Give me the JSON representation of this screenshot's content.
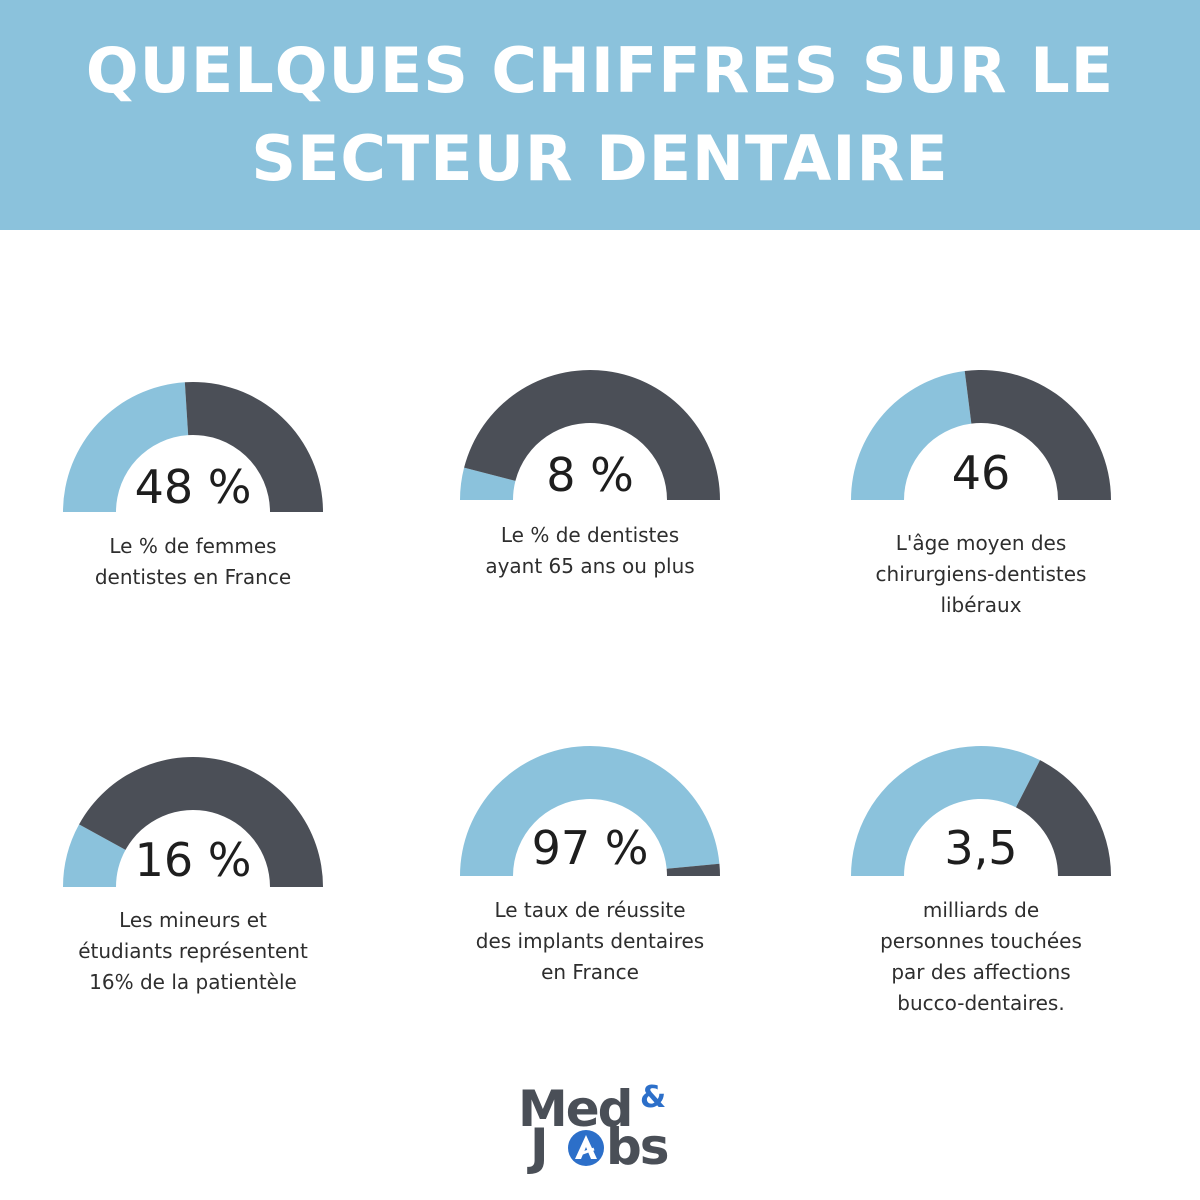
{
  "header": {
    "title_line1": "QUELQUES CHIFFRES SUR LE",
    "title_line2": "SECTEUR DENTAIRE"
  },
  "colors": {
    "header_bg": "#8bc2dc",
    "light": "#8bc2dc",
    "dark": "#4b4f57"
  },
  "chart_data": [
    {
      "type": "gauge",
      "value_label": "48 %",
      "fill_fraction": 0.48,
      "description": [
        "Le % de femmes",
        "dentistes en France"
      ]
    },
    {
      "type": "gauge",
      "value_label": "8 %",
      "fill_fraction": 0.08,
      "description": [
        "Le % de dentistes",
        "ayant 65 ans ou plus"
      ]
    },
    {
      "type": "gauge",
      "value_label": "46",
      "fill_fraction": 0.46,
      "description": [
        "L'âge moyen des",
        "chirurgiens-dentistes",
        "libéraux"
      ]
    },
    {
      "type": "gauge",
      "value_label": "16 %",
      "fill_fraction": 0.16,
      "description": [
        "Les mineurs et",
        "étudiants représentent",
        "16% de la patientèle"
      ]
    },
    {
      "type": "gauge",
      "value_label": "97 %",
      "fill_fraction": 0.97,
      "description": [
        "Le taux de réussite",
        "des implants dentaires",
        "en France"
      ]
    },
    {
      "type": "gauge",
      "value_label": "3,5",
      "fill_fraction": 0.65,
      "description": [
        "milliards de",
        "personnes touchées",
        "par des affections",
        "bucco-dentaires."
      ]
    }
  ],
  "logo": {
    "line1": "Med",
    "amp": "&",
    "line2_j": "J",
    "line2_rest": "bs",
    "icon": "a-logo-icon"
  }
}
